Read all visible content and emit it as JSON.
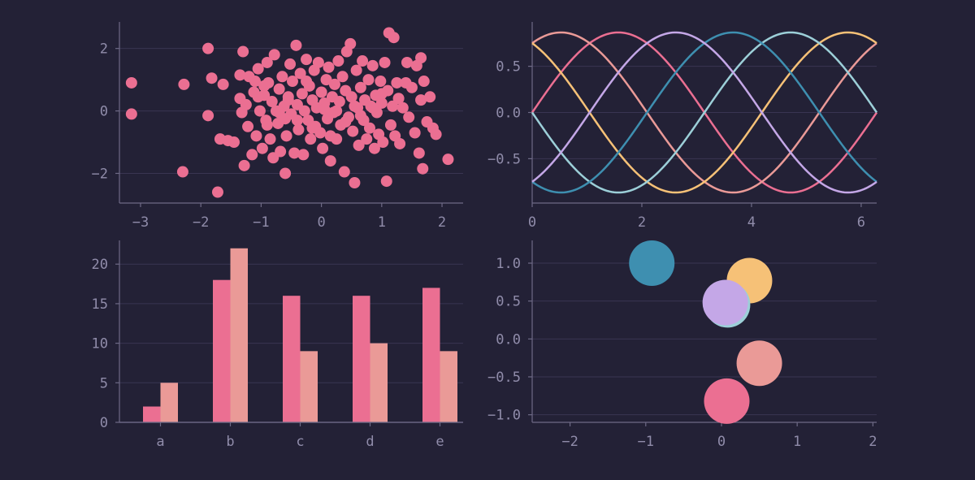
{
  "theme": {
    "background": "#232136",
    "axis_color": "#6e6a86",
    "grid_color": "#393552",
    "tick_label_color": "#908caa",
    "palette": [
      "#eb6f92",
      "#ea9a97",
      "#f6c177",
      "#9ccfd8",
      "#3e8fb0",
      "#c4a7e7"
    ]
  },
  "chart_data": [
    {
      "type": "scatter",
      "color": "#eb6f92",
      "xlim": [
        -3.35,
        2.35
      ],
      "ylim": [
        -2.95,
        2.85
      ],
      "xticks": [
        -3,
        -2,
        -1,
        0,
        1,
        2
      ],
      "xtick_labels": [
        "−3",
        "−2",
        "−1",
        "0",
        "1",
        "2"
      ],
      "yticks": [
        -2,
        0,
        2
      ],
      "ytick_labels": [
        "−2",
        "0",
        "2"
      ],
      "grid": "y",
      "points": [
        [
          -3.15,
          0.9
        ],
        [
          -3.15,
          -0.1
        ],
        [
          -2.28,
          0.85
        ],
        [
          -2.3,
          -1.95
        ],
        [
          -1.88,
          2.0
        ],
        [
          -1.82,
          1.05
        ],
        [
          -1.88,
          -0.15
        ],
        [
          -1.72,
          -2.6
        ],
        [
          -1.63,
          0.85
        ],
        [
          -1.68,
          -0.9
        ],
        [
          -1.55,
          -0.95
        ],
        [
          -1.45,
          -1.0
        ],
        [
          -1.35,
          0.4
        ],
        [
          -1.32,
          -0.05
        ],
        [
          -1.3,
          1.9
        ],
        [
          -1.28,
          -1.75
        ],
        [
          -1.25,
          0.2
        ],
        [
          -1.22,
          -0.5
        ],
        [
          -1.2,
          1.1
        ],
        [
          -1.15,
          -1.4
        ],
        [
          -1.12,
          0.6
        ],
        [
          -1.08,
          -0.8
        ],
        [
          -1.05,
          1.35
        ],
        [
          -1.02,
          0.0
        ],
        [
          -0.98,
          -1.2
        ],
        [
          -0.95,
          0.5
        ],
        [
          -0.92,
          -0.3
        ],
        [
          -0.9,
          1.55
        ],
        [
          -0.88,
          0.9
        ],
        [
          -0.85,
          -0.9
        ],
        [
          -0.82,
          0.3
        ],
        [
          -0.8,
          -1.5
        ],
        [
          -0.95,
          0.8
        ],
        [
          -1.35,
          1.15
        ],
        [
          -1.1,
          0.95
        ],
        [
          -0.78,
          1.8
        ],
        [
          -0.75,
          0.0
        ],
        [
          -0.72,
          -0.4
        ],
        [
          -0.7,
          0.7
        ],
        [
          -0.68,
          -1.3
        ],
        [
          -0.65,
          1.1
        ],
        [
          -0.62,
          0.15
        ],
        [
          -0.6,
          -2.0
        ],
        [
          -0.58,
          -0.8
        ],
        [
          -0.55,
          0.45
        ],
        [
          -0.52,
          1.5
        ],
        [
          -0.5,
          -0.1
        ],
        [
          -0.48,
          0.95
        ],
        [
          -0.45,
          -1.35
        ],
        [
          -0.42,
          2.1
        ],
        [
          -0.4,
          0.2
        ],
        [
          -0.38,
          -0.6
        ],
        [
          -0.35,
          1.2
        ],
        [
          -0.32,
          0.55
        ],
        [
          -0.3,
          -1.4
        ],
        [
          -0.28,
          0.0
        ],
        [
          -0.25,
          1.65
        ],
        [
          -0.22,
          -0.3
        ],
        [
          -0.2,
          0.8
        ],
        [
          -0.18,
          -0.9
        ],
        [
          -0.15,
          0.35
        ],
        [
          -0.12,
          1.3
        ],
        [
          -0.1,
          -0.5
        ],
        [
          -0.08,
          0.1
        ],
        [
          -0.05,
          1.55
        ],
        [
          -0.02,
          -0.7
        ],
        [
          0.0,
          0.6
        ],
        [
          0.02,
          -1.2
        ],
        [
          0.05,
          0.25
        ],
        [
          0.08,
          1.0
        ],
        [
          0.1,
          -0.25
        ],
        [
          0.12,
          1.4
        ],
        [
          0.15,
          -1.6
        ],
        [
          0.18,
          0.45
        ],
        [
          0.2,
          -0.05
        ],
        [
          0.22,
          0.85
        ],
        [
          0.25,
          -0.9
        ],
        [
          0.28,
          1.6
        ],
        [
          0.3,
          0.3
        ],
        [
          0.32,
          -0.45
        ],
        [
          0.35,
          1.1
        ],
        [
          0.38,
          -1.95
        ],
        [
          0.4,
          0.65
        ],
        [
          0.42,
          1.9
        ],
        [
          0.45,
          -0.2
        ],
        [
          0.48,
          2.15
        ],
        [
          0.5,
          0.45
        ],
        [
          0.52,
          -0.65
        ],
        [
          0.55,
          -2.3
        ],
        [
          0.58,
          1.3
        ],
        [
          0.6,
          0.1
        ],
        [
          0.62,
          -1.1
        ],
        [
          0.65,
          0.75
        ],
        [
          0.68,
          1.6
        ],
        [
          0.7,
          -0.3
        ],
        [
          0.72,
          0.35
        ],
        [
          0.75,
          -0.9
        ],
        [
          0.78,
          1.0
        ],
        [
          0.8,
          -0.55
        ],
        [
          0.82,
          0.15
        ],
        [
          0.85,
          1.45
        ],
        [
          0.88,
          -1.2
        ],
        [
          0.9,
          0.5
        ],
        [
          0.92,
          -0.05
        ],
        [
          0.95,
          -0.75
        ],
        [
          0.98,
          0.95
        ],
        [
          1.0,
          0.25
        ],
        [
          1.02,
          -1.0
        ],
        [
          1.05,
          1.55
        ],
        [
          1.08,
          -2.25
        ],
        [
          1.1,
          0.65
        ],
        [
          1.12,
          2.5
        ],
        [
          1.15,
          -0.45
        ],
        [
          1.18,
          0.15
        ],
        [
          1.2,
          2.35
        ],
        [
          1.22,
          -0.8
        ],
        [
          1.25,
          0.9
        ],
        [
          1.28,
          0.4
        ],
        [
          1.3,
          -1.05
        ],
        [
          1.35,
          0.1
        ],
        [
          1.4,
          0.9
        ],
        [
          1.42,
          1.55
        ],
        [
          1.45,
          -0.2
        ],
        [
          1.5,
          0.75
        ],
        [
          1.55,
          -0.7
        ],
        [
          1.58,
          1.45
        ],
        [
          1.62,
          -1.35
        ],
        [
          1.65,
          0.35
        ],
        [
          1.68,
          -1.85
        ],
        [
          1.7,
          0.95
        ],
        [
          1.75,
          -0.35
        ],
        [
          1.85,
          -0.55
        ],
        [
          1.9,
          -0.75
        ],
        [
          2.1,
          -1.55
        ],
        [
          1.8,
          0.45
        ],
        [
          1.65,
          1.7
        ],
        [
          -0.7,
          -0.05
        ],
        [
          -0.4,
          -0.3
        ],
        [
          -0.15,
          -0.55
        ],
        [
          0.25,
          0.0
        ],
        [
          0.55,
          0.15
        ],
        [
          0.85,
          0.1
        ],
        [
          -0.55,
          0.35
        ],
        [
          -0.9,
          -0.45
        ],
        [
          -1.05,
          0.45
        ],
        [
          0.05,
          0.05
        ],
        [
          0.4,
          -0.35
        ],
        [
          0.65,
          -0.15
        ],
        [
          1.0,
          0.55
        ],
        [
          -0.25,
          0.95
        ],
        [
          0.15,
          -0.8
        ],
        [
          -0.6,
          -0.25
        ]
      ]
    },
    {
      "type": "line",
      "xlim": [
        0,
        6.283
      ],
      "ylim": [
        -0.98,
        0.98
      ],
      "xticks": [
        0,
        2,
        4,
        6
      ],
      "xtick_labels": [
        "0",
        "2",
        "4",
        "6"
      ],
      "yticks": [
        -0.5,
        0.0,
        0.5
      ],
      "ytick_labels": [
        "−0.5",
        "0.0",
        "0.5"
      ],
      "grid": "y",
      "x_range": [
        0,
        6.283
      ],
      "series": [
        {
          "color": "#eb6f92",
          "function": "sin",
          "amplitude": 0.866,
          "phase": 0.0
        },
        {
          "color": "#ea9a97",
          "function": "sin",
          "amplitude": 0.866,
          "phase": 1.0472
        },
        {
          "color": "#f6c177",
          "function": "sin",
          "amplitude": 0.866,
          "phase": 2.0944
        },
        {
          "color": "#9ccfd8",
          "function": "sin",
          "amplitude": 0.866,
          "phase": 3.1416
        },
        {
          "color": "#3e8fb0",
          "function": "sin",
          "amplitude": 0.866,
          "phase": 4.1888
        },
        {
          "color": "#c4a7e7",
          "function": "sin",
          "amplitude": 0.866,
          "phase": 5.236
        }
      ]
    },
    {
      "type": "bar",
      "categories": [
        "a",
        "b",
        "c",
        "d",
        "e"
      ],
      "ylim": [
        0,
        23
      ],
      "yticks": [
        0,
        5,
        10,
        15,
        20
      ],
      "ytick_labels": [
        "0",
        "5",
        "10",
        "15",
        "20"
      ],
      "grid": "y",
      "series": [
        {
          "color": "#eb6f92",
          "values": [
            2,
            18,
            16,
            16,
            17
          ]
        },
        {
          "color": "#ea9a97",
          "values": [
            5,
            22,
            9,
            10,
            9
          ]
        }
      ]
    },
    {
      "type": "scatter",
      "marker": "circle",
      "xlim": [
        -2.5,
        2.05
      ],
      "ylim": [
        -1.1,
        1.3
      ],
      "xticks": [
        -2,
        -1,
        0,
        1,
        2
      ],
      "xtick_labels": [
        "−2",
        "−1",
        "0",
        "1",
        "2"
      ],
      "yticks": [
        -1.0,
        -0.5,
        0.0,
        0.5,
        1.0
      ],
      "ytick_labels": [
        "−1.0",
        "−0.5",
        "0.0",
        "0.5",
        "1.0"
      ],
      "grid": "y",
      "points": [
        {
          "x": 0.07,
          "y": -0.82,
          "color": "#eb6f92"
        },
        {
          "x": 0.5,
          "y": -0.32,
          "color": "#ea9a97"
        },
        {
          "x": 0.37,
          "y": 0.77,
          "color": "#f6c177"
        },
        {
          "x": 0.08,
          "y": 0.45,
          "color": "#9ccfd8"
        },
        {
          "x": -0.92,
          "y": 1.0,
          "color": "#3e8fb0"
        },
        {
          "x": 0.05,
          "y": 0.48,
          "color": "#c4a7e7"
        }
      ]
    }
  ]
}
